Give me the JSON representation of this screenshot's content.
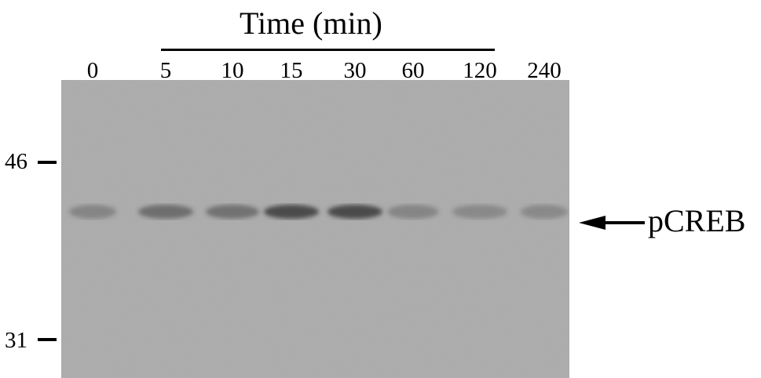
{
  "header": {
    "title": "Time (min)"
  },
  "lanes": [
    "0",
    "5",
    "10",
    "15",
    "30",
    "60",
    "120",
    "240"
  ],
  "markers": {
    "upper": "46",
    "lower": "31"
  },
  "band_label": "pCREB",
  "colors": {
    "ink": "#000000",
    "membrane": "#a9a9a9",
    "band": "#3a3a3a"
  },
  "band_intensity": [
    0.35,
    0.55,
    0.5,
    0.85,
    0.85,
    0.35,
    0.3,
    0.3
  ],
  "icons": {
    "arrow": "left-arrow-icon",
    "tick": "marker-tick-icon"
  }
}
